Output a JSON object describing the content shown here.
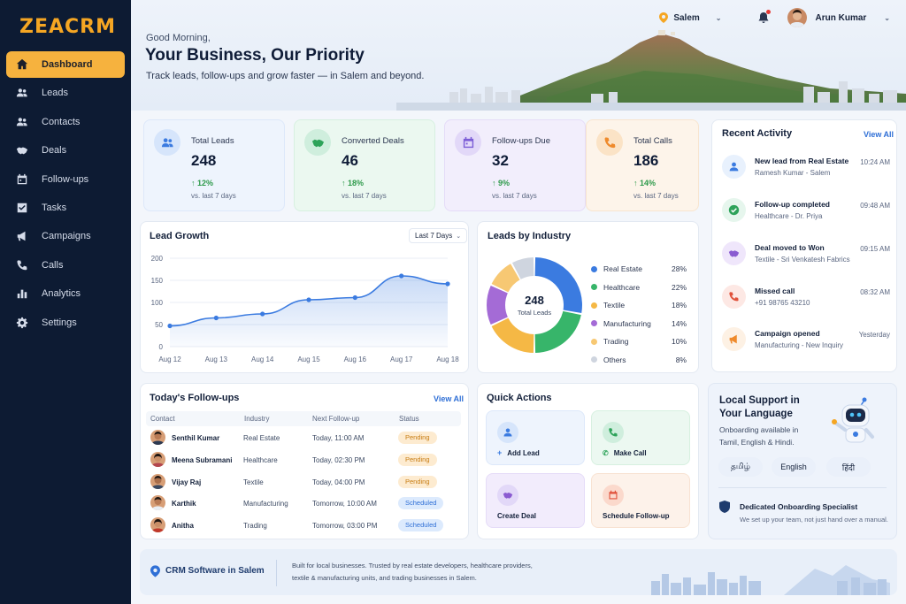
{
  "brand": {
    "logo": "ZEACRM"
  },
  "sidebar": {
    "items": [
      {
        "label": "Dashboard"
      },
      {
        "label": "Leads"
      },
      {
        "label": "Contacts"
      },
      {
        "label": "Deals"
      },
      {
        "label": "Follow-ups"
      },
      {
        "label": "Tasks"
      },
      {
        "label": "Campaigns"
      },
      {
        "label": "Calls"
      },
      {
        "label": "Analytics"
      },
      {
        "label": "Settings"
      }
    ],
    "active": "Dashboard"
  },
  "header": {
    "greeting": "Good Morning,",
    "title": "Your Business, Our Priority",
    "subtitle": "Track leads, follow-ups and grow faster — in Salem and beyond.",
    "location": "Salem",
    "user_name": "Arun Kumar"
  },
  "stats": [
    {
      "label": "Total Leads",
      "value": "248",
      "change": "12%",
      "vs": "vs. last 7 days",
      "icon": "users-icon",
      "color": "#3b7be0",
      "bg": "#e8f1fd"
    },
    {
      "label": "Converted Deals",
      "value": "46",
      "change": "18%",
      "vs": "vs. last 7 days",
      "icon": "handshake-icon",
      "color": "#2ea35a",
      "bg": "#e6f6ed"
    },
    {
      "label": "Follow-ups Due",
      "value": "32",
      "change": "9%",
      "vs": "vs. last 7 days",
      "icon": "calendar-icon",
      "color": "#7b5cd6",
      "bg": "#efeafc"
    },
    {
      "label": "Total Calls",
      "value": "186",
      "change": "14%",
      "vs": "vs. last 7 days",
      "icon": "phone-icon",
      "color": "#ef8a2b",
      "bg": "#fdf1e4"
    }
  ],
  "lead_growth": {
    "title": "Lead Growth",
    "range": "Last 7 Days"
  },
  "industry": {
    "title": "Leads by Industry",
    "total": "248",
    "total_label": "Total Leads"
  },
  "chart_data": [
    {
      "type": "area",
      "title": "Lead Growth",
      "x": [
        "Aug 12",
        "Aug 13",
        "Aug 14",
        "Aug 15",
        "Aug 16",
        "Aug 17",
        "Aug 18"
      ],
      "values": [
        47,
        65,
        74,
        106,
        111,
        160,
        142
      ],
      "ylim": [
        0,
        200
      ],
      "yticks": [
        0,
        50,
        100,
        150,
        200
      ],
      "grid": true,
      "color": "#3b7be0"
    },
    {
      "type": "pie",
      "title": "Leads by Industry",
      "categories": [
        "Real Estate",
        "Healthcare",
        "Textile",
        "Manufacturing",
        "Trading",
        "Others"
      ],
      "values": [
        28,
        22,
        18,
        14,
        10,
        8
      ],
      "labels": [
        "28%",
        "22%",
        "18%",
        "14%",
        "10%",
        "8%"
      ],
      "colors": [
        "#3b7be0",
        "#37b56a",
        "#f5b845",
        "#a46bd6",
        "#f7c873",
        "#cfd5df"
      ],
      "legend": "right"
    }
  ],
  "activity": {
    "title": "Recent Activity",
    "view_all": "View All",
    "items": [
      {
        "title": "New lead from Real Estate",
        "sub": "Ramesh Kumar - Salem",
        "time": "10:24 AM",
        "icon": "user-icon",
        "color": "#3b7be0",
        "bg": "#e8f1fd"
      },
      {
        "title": "Follow-up completed",
        "sub": "Healthcare - Dr. Priya",
        "time": "09:48 AM",
        "icon": "check-icon",
        "color": "#2ea35a",
        "bg": "#e6f6ed"
      },
      {
        "title": "Deal moved to Won",
        "sub": "Textile - Sri Venkatesh Fabrics",
        "time": "09:15 AM",
        "icon": "handshake-icon",
        "color": "#8a5bd1",
        "bg": "#efe6fb"
      },
      {
        "title": "Missed call",
        "sub": "+91 98765 43210",
        "time": "08:32 AM",
        "icon": "phone-icon",
        "color": "#e0513a",
        "bg": "#fde8e4"
      },
      {
        "title": "Campaign opened",
        "sub": "Manufacturing - New Inquiry",
        "time": "Yesterday",
        "icon": "megaphone-icon",
        "color": "#ef8a2b",
        "bg": "#fdf1e4"
      }
    ]
  },
  "followups": {
    "title": "Today's Follow-ups",
    "view_all": "View All",
    "columns": [
      "Contact",
      "Industry",
      "Next Follow-up",
      "Status"
    ],
    "rows": [
      {
        "name": "Senthil Kumar",
        "industry": "Real Estate",
        "next": "Today, 11:00 AM",
        "status": "Pending"
      },
      {
        "name": "Meena Subramani",
        "industry": "Healthcare",
        "next": "Today, 02:30 PM",
        "status": "Pending"
      },
      {
        "name": "Vijay Raj",
        "industry": "Textile",
        "next": "Today, 04:00 PM",
        "status": "Pending"
      },
      {
        "name": "Karthik",
        "industry": "Manufacturing",
        "next": "Tomorrow, 10:00 AM",
        "status": "Scheduled"
      },
      {
        "name": "Anitha",
        "industry": "Trading",
        "next": "Tomorrow, 03:00 PM",
        "status": "Scheduled"
      }
    ]
  },
  "quick_actions": {
    "title": "Quick Actions",
    "items": [
      {
        "label": "Add Lead",
        "icon": "user-icon",
        "color": "#3b7be0",
        "bg": "#eef4fd"
      },
      {
        "label": "Make Call",
        "icon": "phone-icon",
        "color": "#2ea35a",
        "bg": "#ecf8f1"
      },
      {
        "label": "Create Deal",
        "icon": "handshake-icon",
        "color": "#8a5bd1",
        "bg": "#f2ecfc"
      },
      {
        "label": "Schedule Follow-up",
        "icon": "calendar-icon",
        "color": "#e0513a",
        "bg": "#fdf2ea"
      }
    ]
  },
  "support": {
    "title_line1": "Local Support in",
    "title_line2": "Your Language",
    "desc1": "Onboarding available in",
    "desc2": "Tamil, English & Hindi.",
    "languages": [
      "தமிழ்",
      "English",
      "हिंदी"
    ],
    "specialist_title": "Dedicated Onboarding Specialist",
    "specialist_desc": "We set up your team, not just hand over a manual."
  },
  "footer": {
    "title": "CRM Software in Salem",
    "text1": "Built for local businesses. Trusted by real estate developers, healthcare providers,",
    "text2": "textile & manufacturing units, and trading businesses in Salem."
  }
}
